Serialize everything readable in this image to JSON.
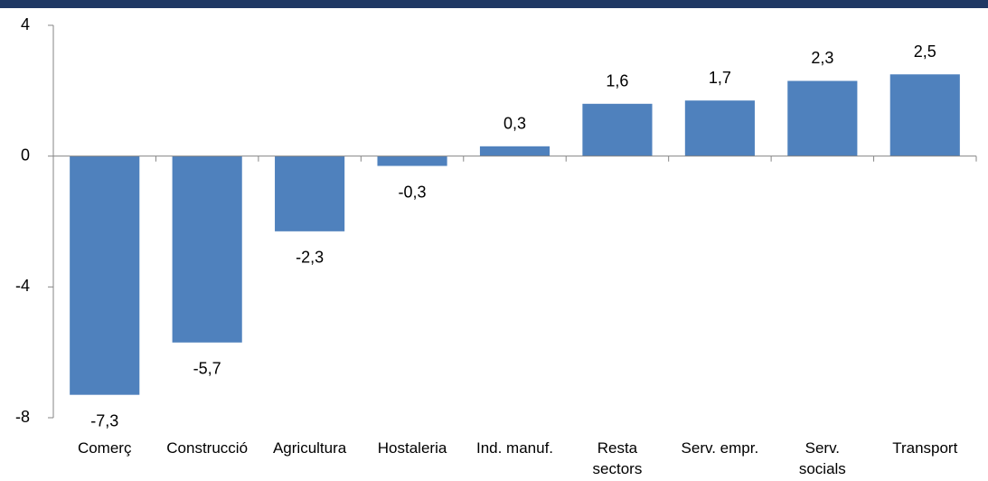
{
  "chart_data": {
    "type": "bar",
    "categories": [
      "Comerç",
      "Construcció",
      "Agricultura",
      "Hostaleria",
      "Ind. manuf.",
      "Resta\nsectors",
      "Serv. empr.",
      "Serv.\nsocials",
      "Transport"
    ],
    "values": [
      -7.3,
      -5.7,
      -2.3,
      -0.3,
      0.3,
      1.6,
      1.7,
      2.3,
      2.5
    ],
    "value_labels": [
      "-7,3",
      "-5,7",
      "-2,3",
      "-0,3",
      "0,3",
      "1,6",
      "1,7",
      "2,3",
      "2,5"
    ],
    "color": "#4f81bd",
    "ylim": [
      -8,
      4
    ],
    "yticks": [
      -8,
      -4,
      0,
      4
    ],
    "grid": false
  }
}
